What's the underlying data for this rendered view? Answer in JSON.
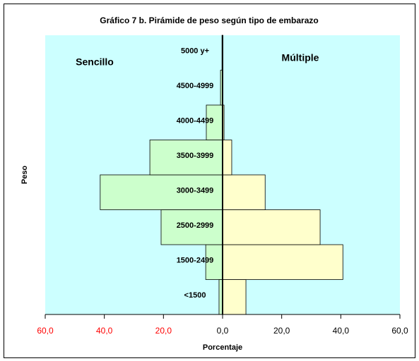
{
  "chart_data": {
    "type": "pyramid",
    "title": "Gráfico 7 b. Pirámide de peso según tipo de embarazo",
    "x_label": "Porcentaje",
    "y_label": "Peso",
    "categories": [
      "<1500",
      "1500-2499",
      "2500-2999",
      "3000-3499",
      "3500-3999",
      "4000-4499",
      "4500-4999",
      "5000 y+"
    ],
    "series": [
      {
        "name": "Sencillo",
        "color": "#ccffcc",
        "values": [
          -1.2,
          -5.7,
          -20.8,
          -41.4,
          -24.6,
          -5.5,
          -0.7,
          -0.2
        ]
      },
      {
        "name": "Múltiple",
        "color": "#ffffcc",
        "values": [
          7.9,
          40.7,
          33.0,
          14.4,
          3.1,
          0.5,
          0.1,
          0.1
        ]
      }
    ],
    "xlim": [
      -60,
      60
    ],
    "xticks": [
      {
        "value": -60,
        "label": "60,0"
      },
      {
        "value": -40,
        "label": "40,0"
      },
      {
        "value": -20,
        "label": "20,0"
      },
      {
        "value": 0,
        "label": "0,0"
      },
      {
        "value": 20,
        "label": "20,0"
      },
      {
        "value": 40,
        "label": "40,0"
      },
      {
        "value": 60,
        "label": "60,0"
      }
    ],
    "negative_tick_color": "#ff0000",
    "plot_background": "#ccffff"
  }
}
